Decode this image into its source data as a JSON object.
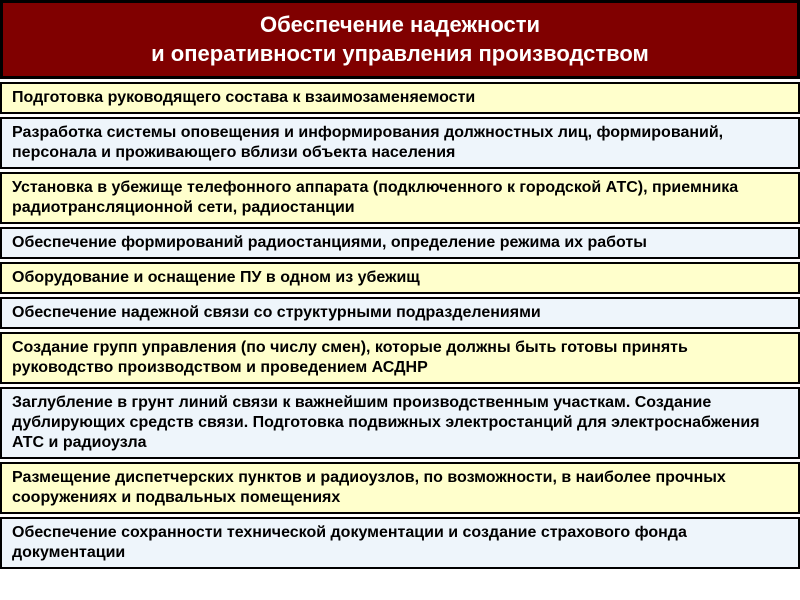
{
  "header": {
    "line1": "Обеспечение надежности",
    "line2": "и оперативности управления производством",
    "bg_color": "#800000",
    "text_color": "#ffffff",
    "font_size": 22
  },
  "item_font_size": 16,
  "alt_colors": {
    "yellow": "#ffffcc",
    "blue": "#eef5fb"
  },
  "items": [
    {
      "text": "Подготовка руководящего состава к взаимозаменяемости",
      "bg": "yellow"
    },
    {
      "text": "Разработка системы оповещения и информирования должностных лиц, формирований, персонала и проживающего вблизи объекта населения",
      "bg": "blue"
    },
    {
      "text": "Установка в убежище телефонного аппарата (подключенного к городской АТС), приемника радиотрансляционной сети, радиостанции",
      "bg": "yellow"
    },
    {
      "text": "Обеспечение формирований радиостанциями, определение режима их работы",
      "bg": "blue"
    },
    {
      "text": "Оборудование и оснащение ПУ в одном из убежищ",
      "bg": "yellow"
    },
    {
      "text": "Обеспечение надежной связи со структурными подразделениями",
      "bg": "blue"
    },
    {
      "text": "Создание групп управления (по числу смен), которые должны быть готовы принять руководство производством и проведением АСДНР",
      "bg": "yellow"
    },
    {
      "text": "Заглубление в грунт линий связи к важнейшим производственным участкам. Создание дублирующих средств связи. Подготовка подвижных электростанций для электроснабжения АТС и радиоузла",
      "bg": "blue"
    },
    {
      "text": "Размещение диспетчерских пунктов и радиоузлов, по возможности, в наиболее прочных сооружениях и подвальных помещениях",
      "bg": "yellow"
    },
    {
      "text": "Обеспечение сохранности технической документации и создание страхового фонда документации",
      "bg": "blue"
    }
  ]
}
